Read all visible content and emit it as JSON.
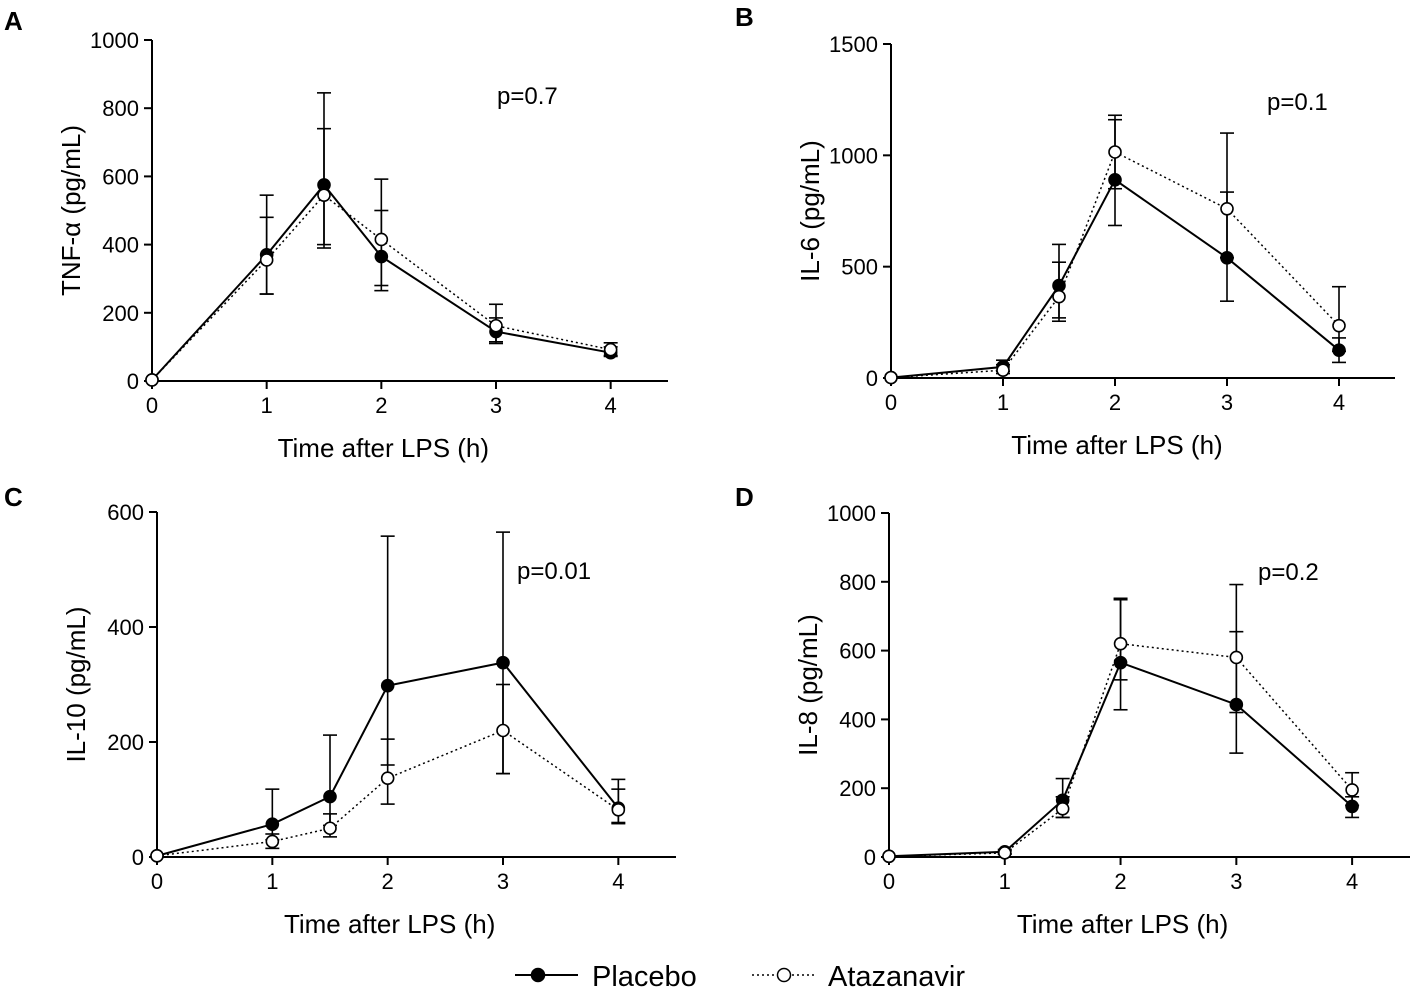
{
  "legend": {
    "series": [
      {
        "name": "Placebo",
        "marker": "filled",
        "line": "solid"
      },
      {
        "name": "Atazanavir",
        "marker": "open",
        "line": "dotted"
      }
    ]
  },
  "colors": {
    "ink": "#000000",
    "background": "#ffffff"
  },
  "chart_data": [
    {
      "panel": "A",
      "type": "line",
      "ylabel": "TNF-α (pg/mL)",
      "xlabel": "Time after LPS (h)",
      "annotation": "p=0.7",
      "ylim": [
        0,
        1000
      ],
      "yticks": [
        0,
        200,
        400,
        600,
        800,
        1000
      ],
      "xticks": [
        0,
        1,
        2,
        3,
        4
      ],
      "xlim": [
        0,
        4.5
      ],
      "series": [
        {
          "name": "Placebo",
          "x": [
            0,
            1,
            1.5,
            2,
            3,
            4
          ],
          "y": [
            3,
            370,
            575,
            365,
            145,
            83
          ],
          "upper": [
            3,
            480,
            740,
            500,
            185,
            100
          ],
          "lower": [
            3,
            255,
            400,
            265,
            110,
            72
          ]
        },
        {
          "name": "Atazanavir",
          "x": [
            0,
            1,
            1.5,
            2,
            3,
            4
          ],
          "y": [
            3,
            355,
            545,
            415,
            162,
            92
          ],
          "upper": [
            3,
            545,
            845,
            592,
            225,
            112
          ],
          "lower": [
            3,
            255,
            390,
            280,
            115,
            75
          ]
        }
      ]
    },
    {
      "panel": "B",
      "type": "line",
      "ylabel": "IL-6 (pg/mL)",
      "xlabel": "Time after LPS (h)",
      "annotation": "p=0.1",
      "ylim": [
        0,
        1500
      ],
      "yticks": [
        0,
        500,
        1000,
        1500
      ],
      "xticks": [
        0,
        1,
        2,
        3,
        4
      ],
      "xlim": [
        0,
        4.5
      ],
      "series": [
        {
          "name": "Placebo",
          "x": [
            0,
            1,
            1.5,
            2,
            3,
            4
          ],
          "y": [
            2,
            50,
            415,
            890,
            540,
            125
          ],
          "upper": [
            2,
            80,
            600,
            1160,
            835,
            180
          ],
          "lower": [
            2,
            30,
            270,
            685,
            345,
            70
          ]
        },
        {
          "name": "Atazanavir",
          "x": [
            0,
            1,
            1.5,
            2,
            3,
            4
          ],
          "y": [
            2,
            35,
            365,
            1015,
            760,
            235
          ],
          "upper": [
            2,
            60,
            520,
            1180,
            1100,
            410
          ],
          "lower": [
            2,
            20,
            255,
            850,
            540,
            120
          ]
        }
      ]
    },
    {
      "panel": "C",
      "type": "line",
      "ylabel": "IL-10 (pg/mL)",
      "xlabel": "Time after LPS (h)",
      "annotation": "p=0.01",
      "ylim": [
        0,
        600
      ],
      "yticks": [
        0,
        200,
        400,
        600
      ],
      "xticks": [
        0,
        1,
        2,
        3,
        4
      ],
      "xlim": [
        0,
        4.5
      ],
      "series": [
        {
          "name": "Placebo",
          "x": [
            0,
            1,
            1.5,
            2,
            3,
            4
          ],
          "y": [
            2,
            57,
            105,
            298,
            338,
            85
          ],
          "upper": [
            2,
            118,
            212,
            558,
            565,
            135
          ],
          "lower": [
            2,
            30,
            55,
            160,
            145,
            58
          ]
        },
        {
          "name": "Atazanavir",
          "x": [
            0,
            1,
            1.5,
            2,
            3,
            4
          ],
          "y": [
            2,
            27,
            50,
            137,
            220,
            82
          ],
          "upper": [
            2,
            40,
            75,
            205,
            300,
            118
          ],
          "lower": [
            2,
            15,
            35,
            92,
            145,
            60
          ]
        }
      ]
    },
    {
      "panel": "D",
      "type": "line",
      "ylabel": "IL-8 (pg/mL)",
      "xlabel": "Time after LPS (h)",
      "annotation": "p=0.2",
      "ylim": [
        0,
        1000
      ],
      "yticks": [
        0,
        200,
        400,
        600,
        800,
        1000
      ],
      "xticks": [
        0,
        1,
        2,
        3,
        4
      ],
      "xlim": [
        0,
        4.5
      ],
      "series": [
        {
          "name": "Placebo",
          "x": [
            0,
            1,
            1.5,
            2,
            3,
            4
          ],
          "y": [
            2,
            15,
            165,
            565,
            443,
            147
          ],
          "upper": [
            2,
            22,
            228,
            752,
            655,
            175
          ],
          "lower": [
            2,
            10,
            115,
            428,
            302,
            115
          ]
        },
        {
          "name": "Atazanavir",
          "x": [
            0,
            1,
            1.5,
            2,
            3,
            4
          ],
          "y": [
            2,
            12,
            140,
            620,
            580,
            195
          ],
          "upper": [
            2,
            18,
            175,
            748,
            792,
            245
          ],
          "lower": [
            2,
            8,
            115,
            515,
            420,
            150
          ]
        }
      ]
    }
  ]
}
